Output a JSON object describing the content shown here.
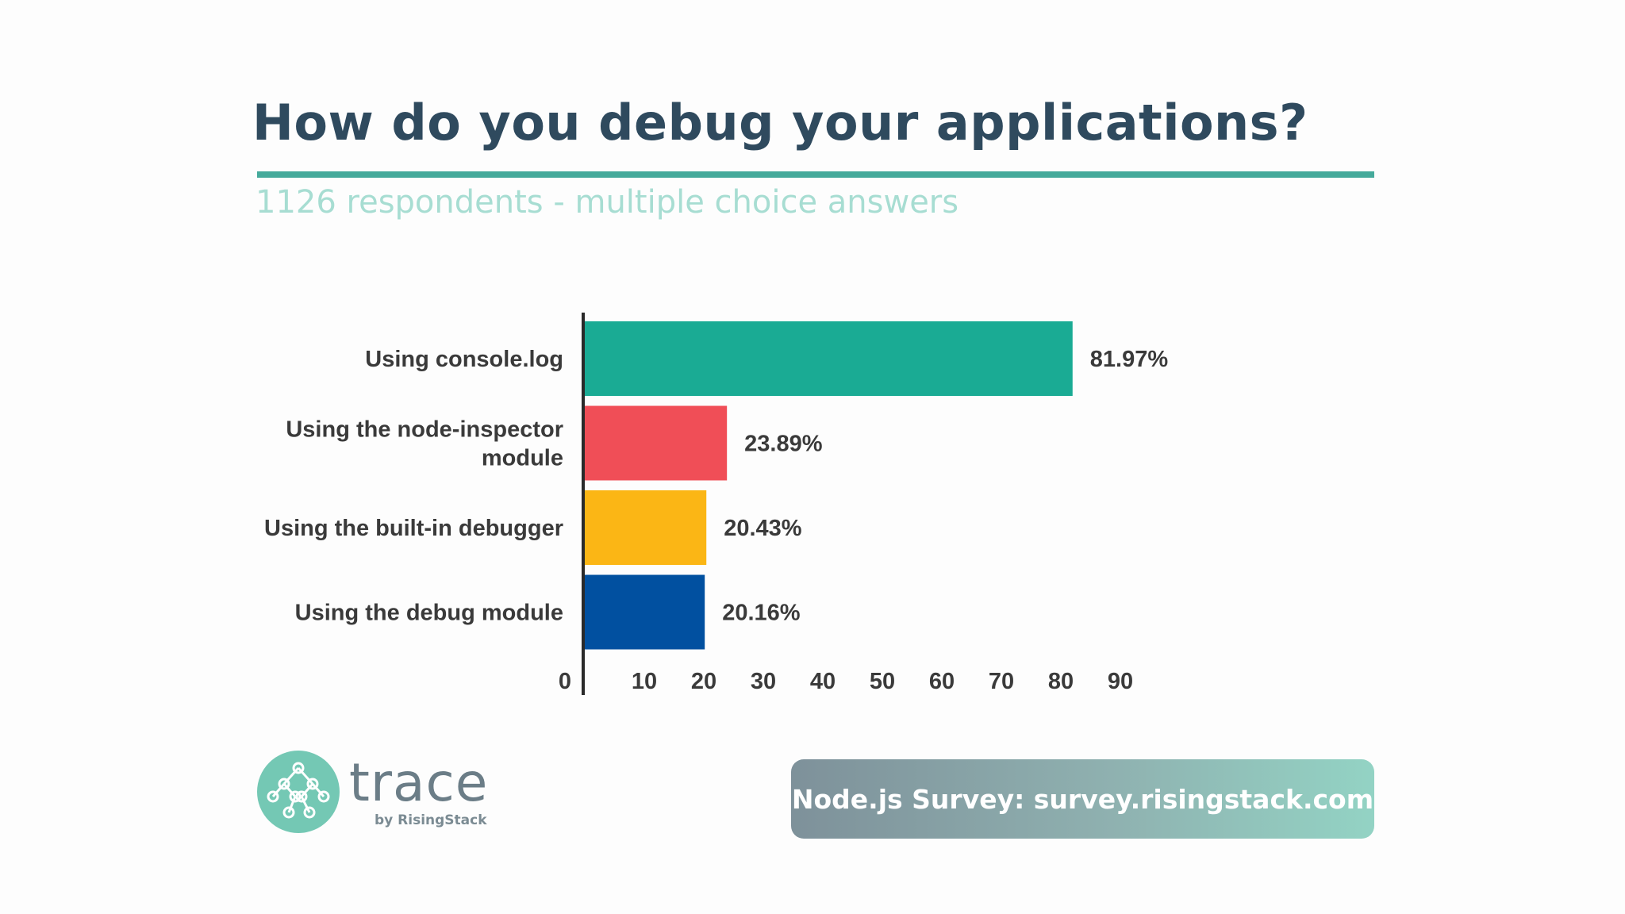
{
  "title": "How do you debug your applications?",
  "subtitle": "1126 respondents - multiple choice answers",
  "colors": {
    "title": "#2f4a5e",
    "rule": "#45aa9b",
    "subtitle": "#a7ddd2"
  },
  "chart_data": {
    "type": "bar",
    "orientation": "horizontal",
    "title": "How do you debug your applications?",
    "subtitle": "1126 respondents - multiple choice answers",
    "categories": [
      "Using console.log",
      "Using the node-inspector module",
      "Using the built-in debugger",
      "Using the debug module"
    ],
    "category_lines": [
      [
        "Using console.log"
      ],
      [
        "Using the node-inspector",
        "module"
      ],
      [
        "Using the built-in debugger"
      ],
      [
        "Using the debug module"
      ]
    ],
    "values": [
      81.97,
      23.89,
      20.43,
      20.16
    ],
    "value_labels": [
      "81.97%",
      "23.89%",
      "20.43%",
      "20.16%"
    ],
    "colors": [
      "#1aab94",
      "#f04e57",
      "#fbb615",
      "#0150a0"
    ],
    "xlim": [
      0,
      90
    ],
    "xticks": [
      0,
      10,
      20,
      30,
      40,
      50,
      60,
      70,
      80,
      90
    ],
    "xlabel": "",
    "ylabel": "",
    "grid": false,
    "legend": "none"
  },
  "logo": {
    "icon": "network-nodes-icon",
    "word": "trace",
    "byline": "by RisingStack"
  },
  "banner": {
    "text": "Node.js Survey: survey.risingstack.com"
  }
}
